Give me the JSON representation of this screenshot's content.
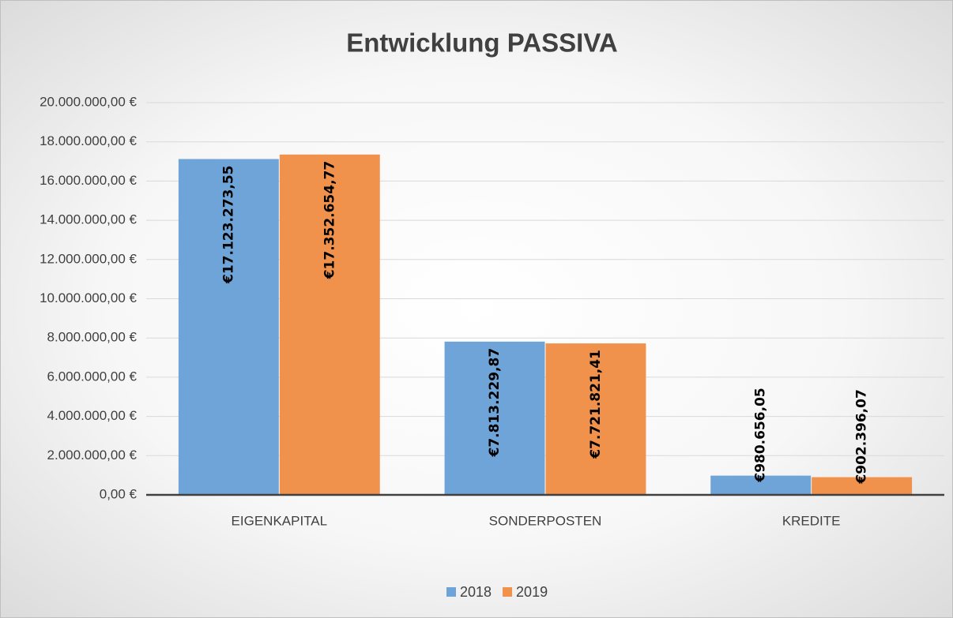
{
  "chart_data": {
    "type": "bar",
    "title": "Entwicklung PASSIVA",
    "categories": [
      "EIGENKAPITAL",
      "SONDERPOSTEN",
      "KREDITE"
    ],
    "series": [
      {
        "name": "2018",
        "color": "#6fa4d8",
        "values": [
          17123273.55,
          7813229.87,
          980656.05
        ],
        "value_labels": [
          "€17.123.273,55",
          "€7.813.229,87",
          "€980.656,05"
        ]
      },
      {
        "name": "2019",
        "color": "#f0914c",
        "values": [
          17352654.77,
          7721821.41,
          902396.07
        ],
        "value_labels": [
          "€17.352.654,77",
          "€7.721.821,41",
          "€902.396,07"
        ]
      }
    ],
    "ylim": [
      0,
      20000000
    ],
    "yticks": [
      {
        "value": 0,
        "label": "0,00 €"
      },
      {
        "value": 2000000,
        "label": "2.000.000,00 €"
      },
      {
        "value": 4000000,
        "label": "4.000.000,00 €"
      },
      {
        "value": 6000000,
        "label": "6.000.000,00 €"
      },
      {
        "value": 8000000,
        "label": "8.000.000,00 €"
      },
      {
        "value": 10000000,
        "label": "10.000.000,00 €"
      },
      {
        "value": 12000000,
        "label": "12.000.000,00 €"
      },
      {
        "value": 14000000,
        "label": "14.000.000,00 €"
      },
      {
        "value": 16000000,
        "label": "16.000.000,00 €"
      },
      {
        "value": 18000000,
        "label": "18.000.000,00 €"
      },
      {
        "value": 20000000,
        "label": "20.000.000,00 €"
      }
    ],
    "grid": true,
    "legend": "bottom"
  }
}
